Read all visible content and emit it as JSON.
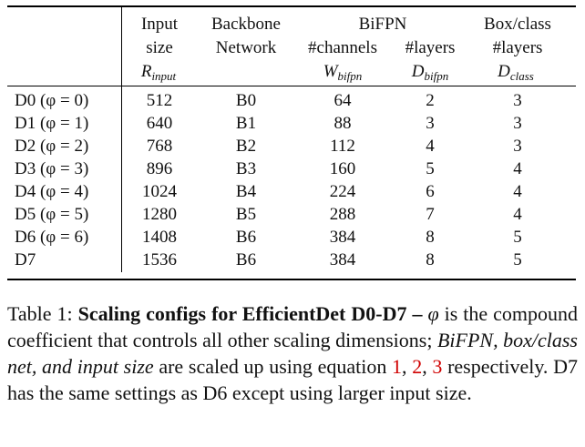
{
  "table": {
    "header": {
      "input": {
        "line1": "Input",
        "line2": "size",
        "sym": "R",
        "sub": "input"
      },
      "backbone": {
        "line1": "Backbone",
        "line2": "Network"
      },
      "bifpn": {
        "group": "BiFPN",
        "channels": "#channels",
        "layers": "#layers",
        "wsym": "W",
        "wsub": "bifpn",
        "dsym": "D",
        "dsub": "bifpn"
      },
      "boxclass": {
        "line1": "Box/class",
        "line2": "#layers",
        "sym": "D",
        "sub": "class"
      }
    },
    "rows": [
      {
        "model": "D0",
        "phi": "(φ = 0)",
        "input": "512",
        "backbone": "B0",
        "channels": "64",
        "bifpn_layers": "2",
        "box_layers": "3"
      },
      {
        "model": "D1",
        "phi": "(φ = 1)",
        "input": "640",
        "backbone": "B1",
        "channels": "88",
        "bifpn_layers": "3",
        "box_layers": "3"
      },
      {
        "model": "D2",
        "phi": "(φ = 2)",
        "input": "768",
        "backbone": "B2",
        "channels": "112",
        "bifpn_layers": "4",
        "box_layers": "3"
      },
      {
        "model": "D3",
        "phi": "(φ = 3)",
        "input": "896",
        "backbone": "B3",
        "channels": "160",
        "bifpn_layers": "5",
        "box_layers": "4"
      },
      {
        "model": "D4",
        "phi": "(φ = 4)",
        "input": "1024",
        "backbone": "B4",
        "channels": "224",
        "bifpn_layers": "6",
        "box_layers": "4"
      },
      {
        "model": "D5",
        "phi": "(φ = 5)",
        "input": "1280",
        "backbone": "B5",
        "channels": "288",
        "bifpn_layers": "7",
        "box_layers": "4"
      },
      {
        "model": "D6",
        "phi": "(φ = 6)",
        "input": "1408",
        "backbone": "B6",
        "channels": "384",
        "bifpn_layers": "8",
        "box_layers": "5"
      },
      {
        "model": "D7",
        "phi": "",
        "input": "1536",
        "backbone": "B6",
        "channels": "384",
        "bifpn_layers": "8",
        "box_layers": "5"
      }
    ]
  },
  "caption": {
    "prefix": "Table 1: ",
    "bold": "Scaling configs for EfficientDet D0-D7 – ",
    "phi": "φ",
    "text1": " is the compound coefficient that controls all other scaling dimensions; ",
    "italic": "BiFPN, box/class net, and input size",
    "text2": " are scaled up using equation ",
    "ref1": "1",
    "sep1": ", ",
    "ref2": "2",
    "sep2": ", ",
    "ref3": "3",
    "text3": " respectively. D7 has the same settings as D6 except using larger input size."
  }
}
